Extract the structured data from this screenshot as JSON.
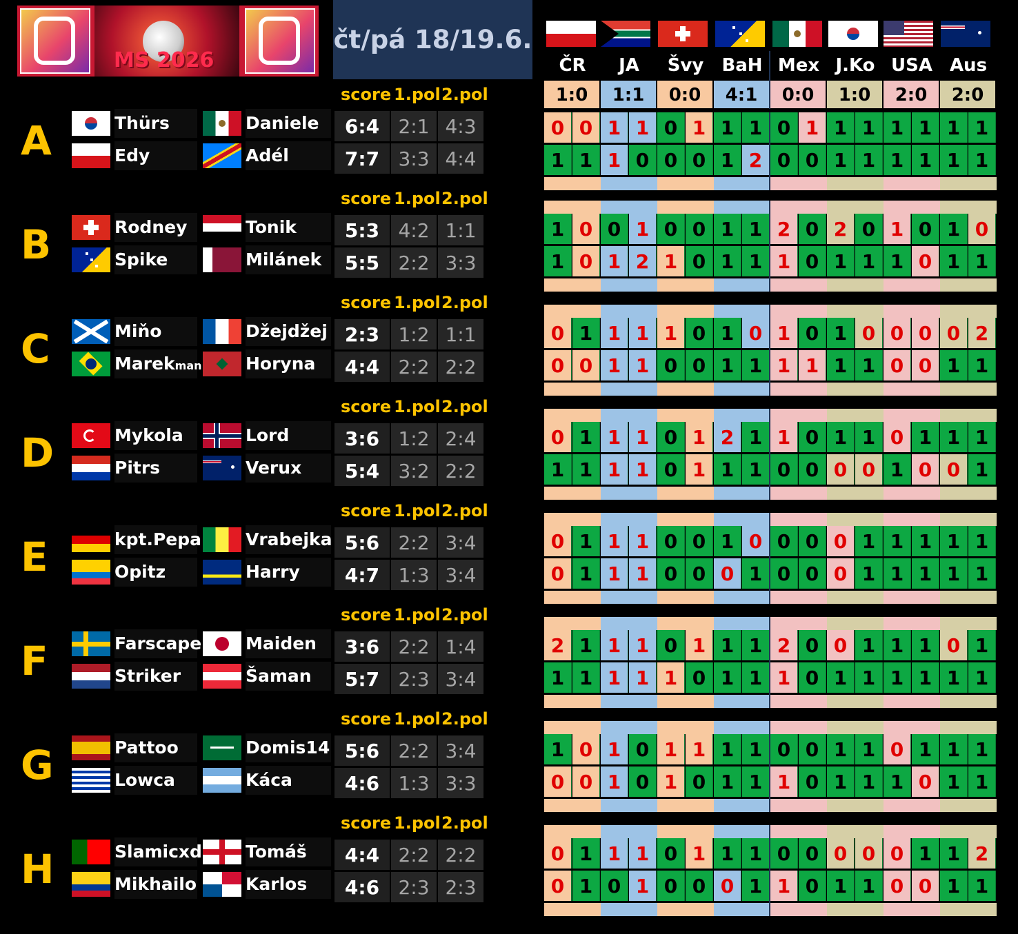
{
  "header": {
    "logo_alt_text": "MS 2026",
    "date_label": "čt/pá 18/19.6."
  },
  "colors": {
    "orange": "#f8c9a0",
    "blue": "#9dc3e6",
    "pink": "#f2c1c1",
    "khaki": "#d6cfa6",
    "green": "#0da843",
    "yellow": "#fdc300",
    "miss_red": "#e00000"
  },
  "matches": [
    {
      "team": "ČR",
      "result": "1:0",
      "band": "orange"
    },
    {
      "team": "JA",
      "result": "1:1",
      "band": "blue"
    },
    {
      "team": "Švy",
      "result": "0:0",
      "band": "orange"
    },
    {
      "team": "BaH",
      "result": "4:1",
      "band": "blue"
    },
    {
      "team": "Mex",
      "result": "0:0",
      "band": "pink"
    },
    {
      "team": "J.Ko",
      "result": "1:0",
      "band": "khaki"
    },
    {
      "team": "USA",
      "result": "2:0",
      "band": "pink"
    },
    {
      "team": "Aus",
      "result": "2:0",
      "band": "khaki"
    }
  ],
  "column_headers": {
    "score": "score",
    "first_half": "1.pol",
    "second_half": "2.pol"
  },
  "groups": [
    {
      "letter": "A",
      "players": [
        {
          "name": "Thürs",
          "flag": "kor",
          "score": "6:4",
          "h1": "2:1",
          "h2": "4:3"
        },
        {
          "name": "Edy",
          "flag": "cze"
        },
        {
          "name": "Daniele",
          "flag": "mex"
        },
        {
          "name": "Adél",
          "flag": "cod",
          "score": "7:7",
          "h1": "3:3",
          "h2": "4:4"
        }
      ],
      "rows": [
        [
          "0",
          "0",
          "1",
          "1",
          "0",
          "1",
          "1",
          "1",
          "0",
          "1",
          "1",
          "1",
          "1",
          "1",
          "1",
          "1"
        ],
        [
          "1",
          "1",
          "1",
          "0",
          "0",
          "0",
          "1",
          "2",
          "0",
          "0",
          "1",
          "1",
          "1",
          "1",
          "1",
          "1"
        ]
      ]
    },
    {
      "letter": "B",
      "players": [
        {
          "name": "Rodney",
          "flag": "sui",
          "score": "5:3",
          "h1": "4:2",
          "h2": "1:1"
        },
        {
          "name": "Spike",
          "flag": "bih"
        },
        {
          "name": "Tonik",
          "flag": "egy"
        },
        {
          "name": "Milánek",
          "flag": "qat",
          "score": "5:5",
          "h1": "2:2",
          "h2": "3:3"
        }
      ],
      "rows": [
        [
          "1",
          "0",
          "0",
          "1",
          "0",
          "0",
          "1",
          "1",
          "2",
          "0",
          "2",
          "0",
          "1",
          "0",
          "1",
          "0"
        ],
        [
          "1",
          "0",
          "1",
          "2",
          "1",
          "0",
          "1",
          "1",
          "1",
          "0",
          "1",
          "1",
          "1",
          "0",
          "1",
          "1"
        ]
      ]
    },
    {
      "letter": "C",
      "players": [
        {
          "name": "Miňo",
          "flag": "sco",
          "score": "2:3",
          "h1": "1:2",
          "h2": "1:1"
        },
        {
          "name": "Marekman",
          "flag": "bra"
        },
        {
          "name": "Džejdžej",
          "flag": "fra"
        },
        {
          "name": "Horyna",
          "flag": "mar",
          "score": "4:4",
          "h1": "2:2",
          "h2": "2:2"
        }
      ],
      "rows": [
        [
          "0",
          "1",
          "1",
          "1",
          "1",
          "0",
          "1",
          "0",
          "1",
          "0",
          "1",
          "0",
          "0",
          "0",
          "0",
          "2"
        ],
        [
          "0",
          "0",
          "1",
          "1",
          "0",
          "0",
          "1",
          "1",
          "1",
          "1",
          "1",
          "1",
          "0",
          "0",
          "1",
          "1"
        ]
      ]
    },
    {
      "letter": "D",
      "players": [
        {
          "name": "Mykola",
          "flag": "tur",
          "score": "3:6",
          "h1": "1:2",
          "h2": "2:4"
        },
        {
          "name": "Pitrs",
          "flag": "par"
        },
        {
          "name": "Lord Kurt",
          "flag": "nor"
        },
        {
          "name": "Verux",
          "flag": "aus",
          "score": "5:4",
          "h1": "3:2",
          "h2": "2:2"
        }
      ],
      "rows": [
        [
          "0",
          "1",
          "1",
          "1",
          "0",
          "1",
          "2",
          "1",
          "1",
          "0",
          "1",
          "1",
          "0",
          "1",
          "1",
          "1"
        ],
        [
          "1",
          "1",
          "1",
          "1",
          "0",
          "1",
          "1",
          "1",
          "0",
          "0",
          "0",
          "0",
          "1",
          "0",
          "0",
          "1"
        ]
      ]
    },
    {
      "letter": "E",
      "players": [
        {
          "name": "kpt.Pepa",
          "flag": "ger",
          "score": "5:6",
          "h1": "2:2",
          "h2": "3:4"
        },
        {
          "name": "Opitz",
          "flag": "ecu"
        },
        {
          "name": "Vrabejka",
          "flag": "sen"
        },
        {
          "name": "Harry",
          "flag": "cuw",
          "score": "4:7",
          "h1": "1:3",
          "h2": "3:4"
        }
      ],
      "rows": [
        [
          "0",
          "1",
          "1",
          "1",
          "0",
          "0",
          "1",
          "0",
          "0",
          "0",
          "0",
          "1",
          "1",
          "1",
          "1",
          "1"
        ],
        [
          "0",
          "1",
          "1",
          "1",
          "0",
          "0",
          "0",
          "1",
          "0",
          "0",
          "0",
          "1",
          "1",
          "1",
          "1",
          "1"
        ]
      ]
    },
    {
      "letter": "F",
      "players": [
        {
          "name": "Farscape",
          "flag": "swe",
          "score": "3:6",
          "h1": "2:2",
          "h2": "1:4"
        },
        {
          "name": "Striker",
          "flag": "ned"
        },
        {
          "name": "Maiden",
          "flag": "jpn"
        },
        {
          "name": "Šaman",
          "flag": "aut",
          "score": "5:7",
          "h1": "2:3",
          "h2": "3:4"
        }
      ],
      "rows": [
        [
          "2",
          "1",
          "1",
          "1",
          "0",
          "1",
          "1",
          "1",
          "2",
          "0",
          "0",
          "1",
          "1",
          "1",
          "0",
          "1"
        ],
        [
          "1",
          "1",
          "1",
          "1",
          "1",
          "0",
          "1",
          "1",
          "1",
          "0",
          "1",
          "1",
          "1",
          "1",
          "1",
          "1"
        ]
      ]
    },
    {
      "letter": "G",
      "players": [
        {
          "name": "Pattoo",
          "flag": "esp",
          "score": "5:6",
          "h1": "2:2",
          "h2": "3:4"
        },
        {
          "name": "Lowca",
          "flag": "uru"
        },
        {
          "name": "Domis14",
          "flag": "ksa"
        },
        {
          "name": "Káca",
          "flag": "arg",
          "score": "4:6",
          "h1": "1:3",
          "h2": "3:3"
        }
      ],
      "rows": [
        [
          "1",
          "0",
          "1",
          "0",
          "1",
          "1",
          "1",
          "1",
          "0",
          "0",
          "1",
          "1",
          "0",
          "1",
          "1",
          "1"
        ],
        [
          "0",
          "0",
          "1",
          "0",
          "1",
          "0",
          "1",
          "1",
          "1",
          "0",
          "1",
          "1",
          "1",
          "0",
          "1",
          "1"
        ]
      ]
    },
    {
      "letter": "H",
      "players": [
        {
          "name": "Slamicxd",
          "flag": "por",
          "score": "4:4",
          "h1": "2:2",
          "h2": "2:2"
        },
        {
          "name": "Mikhailo",
          "flag": "col"
        },
        {
          "name": "Tomáš",
          "flag": "eng"
        },
        {
          "name": "Karlos",
          "flag": "pan",
          "score": "4:6",
          "h1": "2:3",
          "h2": "2:3"
        }
      ],
      "rows": [
        [
          "0",
          "1",
          "1",
          "1",
          "0",
          "1",
          "1",
          "1",
          "0",
          "0",
          "0",
          "0",
          "0",
          "1",
          "1",
          "2"
        ],
        [
          "0",
          "1",
          "0",
          "1",
          "0",
          "0",
          "0",
          "1",
          "1",
          "0",
          "1",
          "1",
          "0",
          "0",
          "1",
          "1"
        ]
      ]
    }
  ],
  "cell_colors": {
    "A": [
      [
        "o",
        "o",
        "b",
        "b",
        "g",
        "o",
        "g",
        "g",
        "g",
        "p",
        "g",
        "g",
        "g",
        "g",
        "g",
        "g"
      ],
      [
        "g",
        "g",
        "b",
        "g",
        "g",
        "g",
        "g",
        "b",
        "g",
        "g",
        "g",
        "g",
        "g",
        "g",
        "g",
        "g"
      ]
    ],
    "B": [
      [
        "g",
        "o",
        "g",
        "b",
        "g",
        "g",
        "g",
        "g",
        "p",
        "g",
        "k",
        "g",
        "p",
        "g",
        "g",
        "k"
      ],
      [
        "g",
        "o",
        "b",
        "b",
        "o",
        "g",
        "g",
        "g",
        "p",
        "g",
        "g",
        "g",
        "g",
        "p",
        "g",
        "g"
      ]
    ],
    "C": [
      [
        "o",
        "g",
        "b",
        "b",
        "o",
        "g",
        "g",
        "b",
        "p",
        "g",
        "g",
        "k",
        "p",
        "p",
        "k",
        "k"
      ],
      [
        "o",
        "o",
        "b",
        "b",
        "g",
        "g",
        "g",
        "g",
        "p",
        "p",
        "g",
        "g",
        "p",
        "p",
        "g",
        "g"
      ]
    ],
    "D": [
      [
        "o",
        "g",
        "b",
        "b",
        "g",
        "o",
        "b",
        "g",
        "p",
        "g",
        "g",
        "g",
        "p",
        "g",
        "g",
        "g"
      ],
      [
        "g",
        "g",
        "b",
        "b",
        "g",
        "o",
        "g",
        "g",
        "g",
        "g",
        "k",
        "k",
        "g",
        "p",
        "k",
        "g"
      ]
    ],
    "E": [
      [
        "o",
        "g",
        "b",
        "b",
        "g",
        "g",
        "g",
        "b",
        "g",
        "g",
        "p",
        "g",
        "g",
        "g",
        "g",
        "g"
      ],
      [
        "o",
        "g",
        "b",
        "b",
        "g",
        "g",
        "b",
        "g",
        "g",
        "g",
        "p",
        "g",
        "g",
        "g",
        "g",
        "g"
      ]
    ],
    "F": [
      [
        "o",
        "g",
        "b",
        "b",
        "g",
        "o",
        "g",
        "g",
        "p",
        "g",
        "p",
        "g",
        "g",
        "g",
        "k",
        "g"
      ],
      [
        "g",
        "g",
        "b",
        "b",
        "o",
        "g",
        "g",
        "g",
        "p",
        "g",
        "g",
        "g",
        "g",
        "g",
        "g",
        "g"
      ]
    ],
    "G": [
      [
        "g",
        "o",
        "b",
        "g",
        "o",
        "o",
        "g",
        "g",
        "g",
        "g",
        "g",
        "g",
        "p",
        "g",
        "g",
        "g"
      ],
      [
        "o",
        "o",
        "b",
        "g",
        "o",
        "g",
        "g",
        "g",
        "p",
        "g",
        "g",
        "g",
        "g",
        "p",
        "g",
        "g"
      ]
    ],
    "H": [
      [
        "o",
        "g",
        "b",
        "b",
        "g",
        "o",
        "g",
        "g",
        "g",
        "g",
        "k",
        "k",
        "p",
        "g",
        "g",
        "k"
      ],
      [
        "o",
        "g",
        "g",
        "b",
        "g",
        "g",
        "b",
        "g",
        "p",
        "g",
        "g",
        "g",
        "p",
        "p",
        "g",
        "g"
      ]
    ]
  }
}
